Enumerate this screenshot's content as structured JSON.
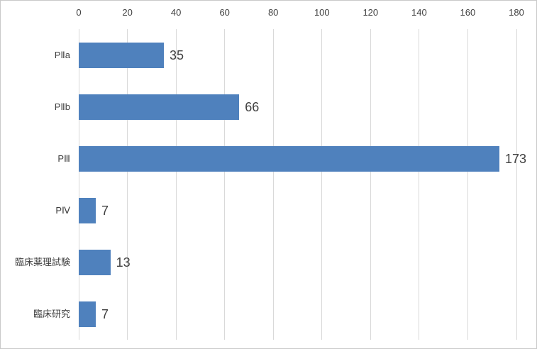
{
  "chart_data": {
    "type": "bar",
    "orientation": "horizontal",
    "title": "",
    "xlabel": "",
    "ylabel": "",
    "categories": [
      "PⅡa",
      "PⅡb",
      "PⅢ",
      "PⅣ",
      "臨床薬理試験",
      "臨床研究"
    ],
    "values": [
      35,
      66,
      173,
      7,
      13,
      7
    ],
    "data_labels": [
      "35",
      "66",
      "173",
      "7",
      "13",
      "7"
    ],
    "xlim": [
      0,
      180
    ],
    "xticks": [
      0,
      20,
      40,
      60,
      80,
      100,
      120,
      140,
      160,
      180
    ],
    "axis_position": "top",
    "grid": "vertical-only",
    "legend": "none",
    "colors": {
      "bar": "#4F81BD",
      "gridline": "#D9D9D9",
      "text": "#404040",
      "border": "#C9C9C9",
      "background": "#FFFFFF"
    }
  }
}
